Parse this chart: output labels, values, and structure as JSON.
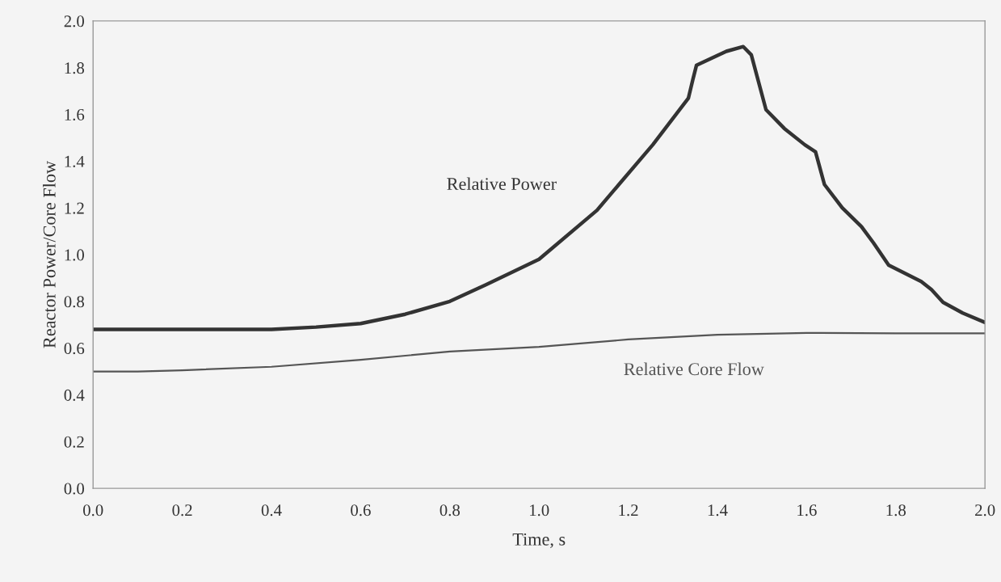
{
  "chart_data": {
    "type": "line",
    "xlabel": "Time, s",
    "ylabel": "Reactor Power/Core Flow",
    "xlim": [
      0,
      2.0
    ],
    "ylim": [
      0,
      2.0
    ],
    "xticks": [
      {
        "value": 0,
        "label": "0.0"
      },
      0.2,
      0.4,
      0.6,
      0.8,
      {
        "value": 1,
        "label": "1.0"
      },
      1.2,
      1.4,
      1.6,
      1.8,
      {
        "value": 2,
        "label": "2.0"
      }
    ],
    "yticks": [
      {
        "value": 0,
        "label": "0.0"
      },
      0.2,
      0.4,
      0.6,
      0.8,
      {
        "value": 1,
        "label": "1.0"
      },
      1.2,
      1.4,
      1.6,
      1.8,
      {
        "value": 2,
        "label": "2.0"
      }
    ],
    "grid": false,
    "marker": "none",
    "line_style": "solid",
    "series": [
      {
        "name": "Relative Power",
        "color": "#333333",
        "x": [
          0,
          0.2,
          0.4,
          0.5,
          0.6,
          0.7,
          0.8,
          0.88,
          1.0,
          1.13,
          1.255,
          1.335,
          1.345,
          1.353,
          1.386,
          1.42,
          1.458,
          1.476,
          1.509,
          1.55,
          1.596,
          1.62,
          1.64,
          1.68,
          1.723,
          1.75,
          1.784,
          1.857,
          1.88,
          1.906,
          1.95,
          2.0
        ],
        "values": [
          0.68,
          0.68,
          0.68,
          0.69,
          0.705,
          0.745,
          0.8,
          0.87,
          0.98,
          1.19,
          1.47,
          1.67,
          1.75,
          1.81,
          1.84,
          1.87,
          1.89,
          1.855,
          1.62,
          1.54,
          1.47,
          1.44,
          1.3,
          1.2,
          1.12,
          1.05,
          0.955,
          0.885,
          0.85,
          0.796,
          0.75,
          0.71
        ]
      },
      {
        "name": "Relative Core Flow",
        "color": "#555555",
        "x": [
          0,
          0.1,
          0.2,
          0.4,
          0.6,
          0.8,
          1.0,
          1.2,
          1.4,
          1.6,
          1.8,
          2.0
        ],
        "values": [
          0.5,
          0.5,
          0.505,
          0.52,
          0.55,
          0.585,
          0.605,
          0.637,
          0.657,
          0.665,
          0.663,
          0.663
        ]
      }
    ]
  }
}
